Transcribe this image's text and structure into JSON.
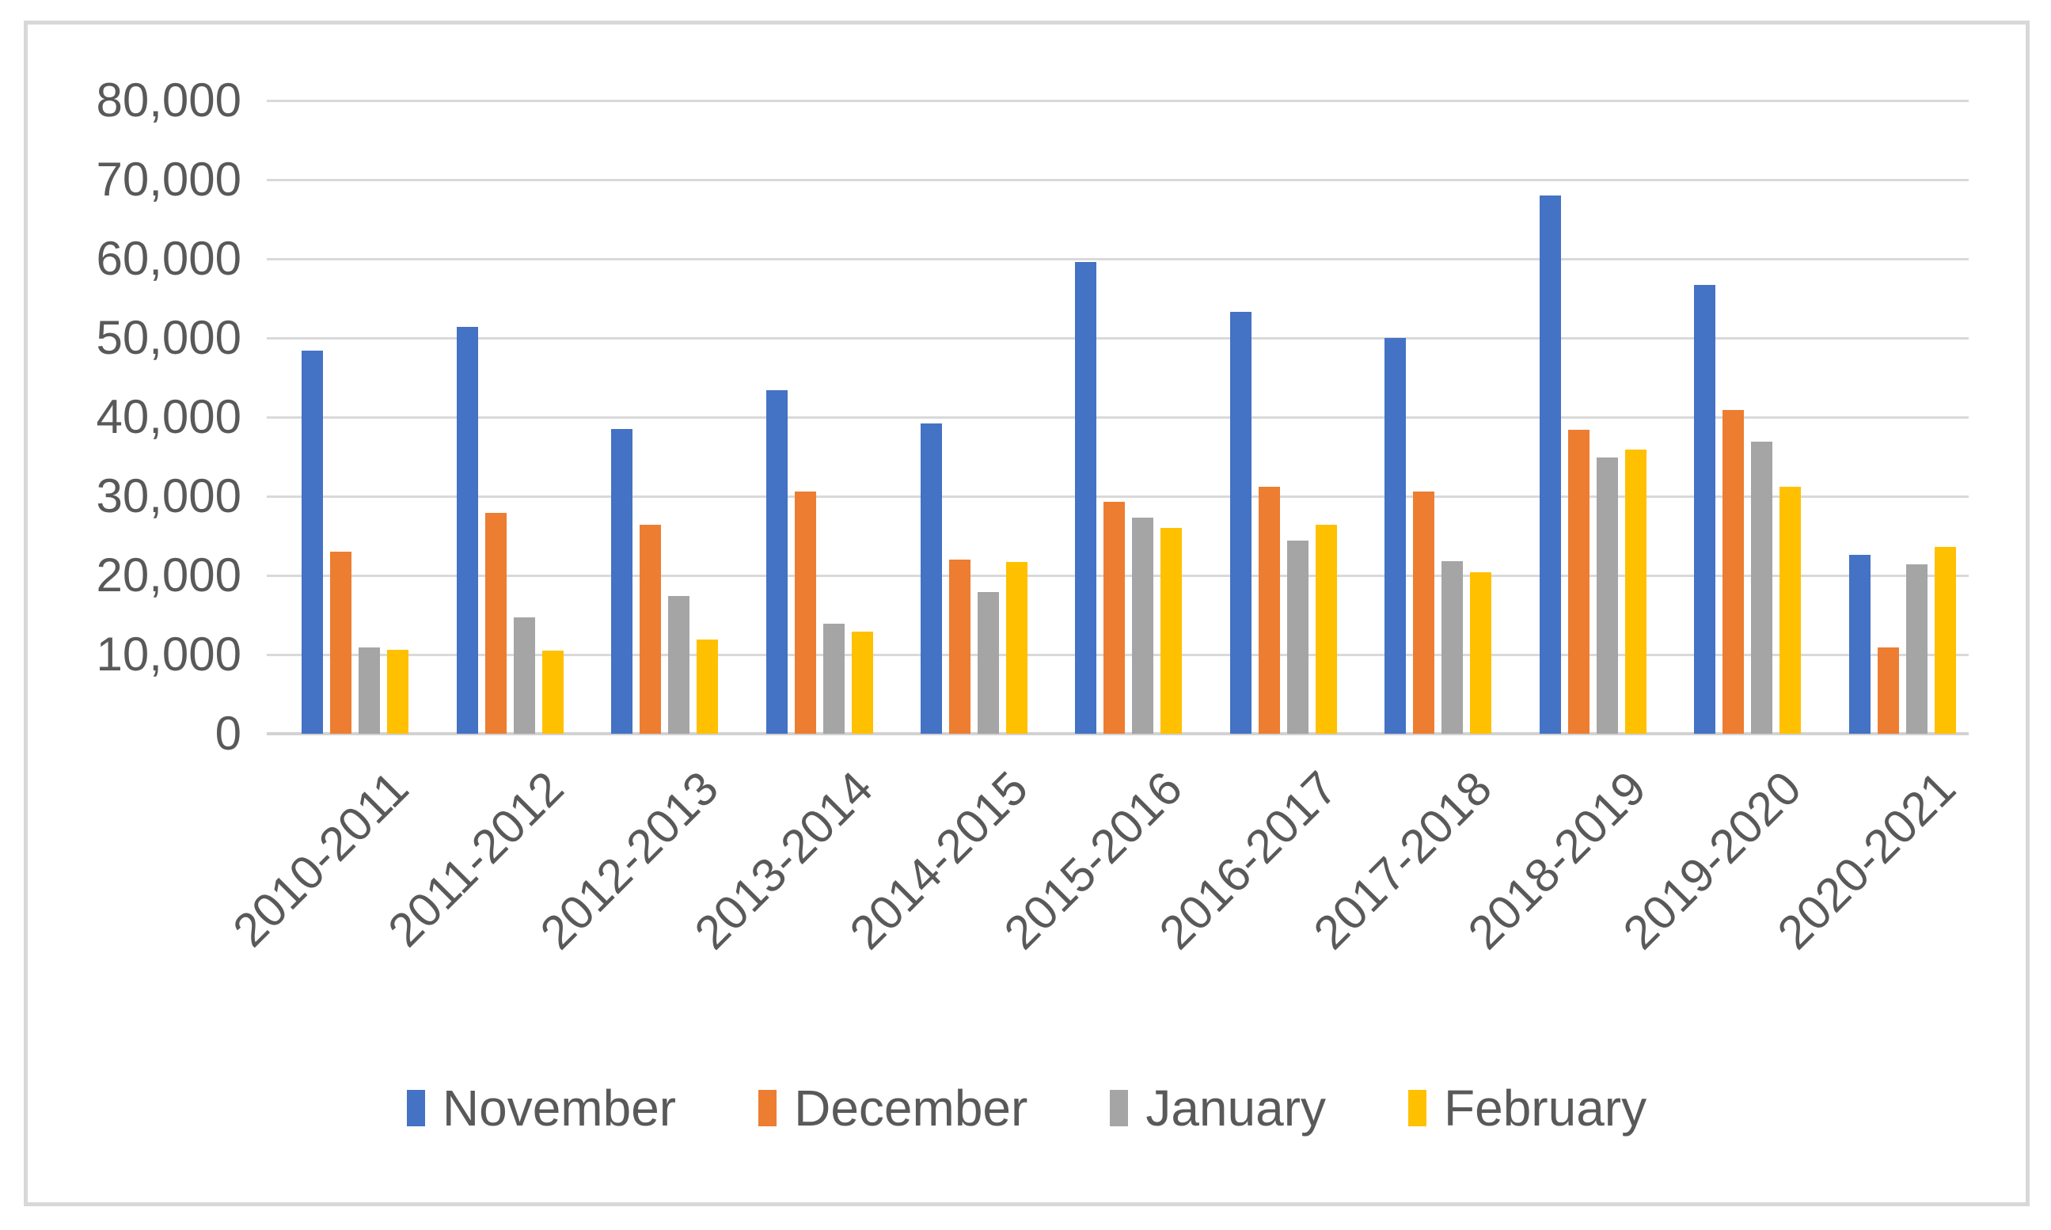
{
  "chart_data": {
    "type": "bar",
    "title": "",
    "xlabel": "",
    "ylabel": "",
    "categories": [
      "2010-2011",
      "2011-2012",
      "2012-2013",
      "2013-2014",
      "2014-2015",
      "2015-2016",
      "2016-2017",
      "2017-2018",
      "2018-2019",
      "2019-2020",
      "2020-2021"
    ],
    "series": [
      {
        "name": "November",
        "color": "#4472C4",
        "values": [
          48400,
          51400,
          38500,
          43400,
          39200,
          59600,
          53300,
          50000,
          68000,
          56700,
          22600
        ]
      },
      {
        "name": "December",
        "color": "#ED7D31",
        "values": [
          23000,
          27900,
          26400,
          30600,
          22000,
          29300,
          31200,
          30600,
          38400,
          40900,
          10900
        ]
      },
      {
        "name": "January",
        "color": "#A5A5A5",
        "values": [
          10900,
          14700,
          17400,
          13900,
          17900,
          27300,
          24400,
          21800,
          34900,
          36900,
          21400
        ]
      },
      {
        "name": "February",
        "color": "#FFC000",
        "values": [
          10600,
          10500,
          11900,
          12900,
          21700,
          26000,
          26400,
          20400,
          35900,
          31200,
          23600
        ]
      }
    ],
    "ylim": [
      0,
      80000
    ],
    "ytick_interval": 10000,
    "ytick_labels": [
      "0",
      "10,000",
      "20,000",
      "30,000",
      "40,000",
      "50,000",
      "60,000",
      "70,000",
      "80,000"
    ],
    "grid": true,
    "legend_position": "bottom",
    "legend_labels": [
      "November",
      "December",
      "January",
      "February"
    ]
  },
  "colors": {
    "axis_text": "#595959",
    "gridline": "#D9D9D9",
    "baseline": "#D2D2D2",
    "frame_border": "#D8D8D8",
    "background": "#FFFFFF"
  }
}
